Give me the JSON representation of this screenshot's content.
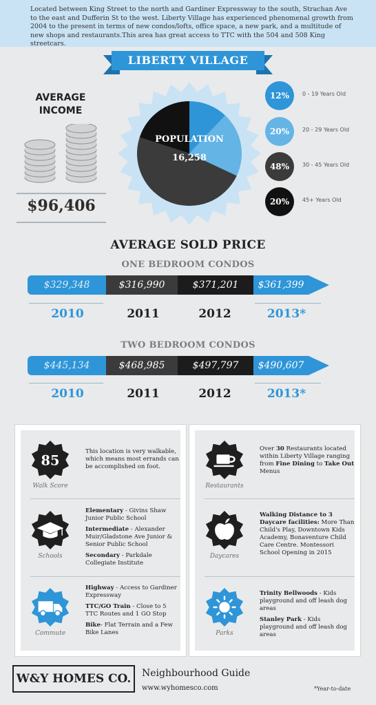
{
  "intro": "Located between King Street to the north and Gardiner Expressway to the south, Strachan Ave to the east and Dufferin St to the west. Liberty Village has experienced phenomenal growth from 2004 to the present in terms of new condos/lofts, office space, a new park, and a multitude of new shops and restaurants.This area has great access to TTC with the 504 and 508 King streetcars.",
  "title": "LIBERTY VILLAGE",
  "income": {
    "title_line1": "AVERAGE",
    "title_line2": "INCOME",
    "value": "$96,406"
  },
  "population": {
    "label": "POPULATION",
    "value": "16,258"
  },
  "age_groups": [
    {
      "percent": "12%",
      "label": "0 - 19 Years Old",
      "fraction": 0.12,
      "color": "#2e95d8"
    },
    {
      "percent": "20%",
      "label": "20 - 29 Years Old",
      "fraction": 0.2,
      "color": "#64b4e6"
    },
    {
      "percent": "48%",
      "label": "30 - 45 Years Old",
      "fraction": 0.48,
      "color": "#3b3b3b"
    },
    {
      "percent": "20%",
      "label": "45+ Years Old",
      "fraction": 0.2,
      "color": "#111111"
    }
  ],
  "sold_price_title": "AVERAGE SOLD PRICE",
  "one_bedroom": {
    "title": "ONE BEDROOM CONDOS",
    "prices": [
      "$329,348",
      "$316,990",
      "$371,201",
      "$361,399"
    ],
    "years": [
      "2010",
      "2011",
      "2012",
      "2013*"
    ]
  },
  "two_bedroom": {
    "title": "TWO BEDROOM CONDOS",
    "prices": [
      "$445,134",
      "$468,985",
      "$497,797",
      "$490,607"
    ],
    "years": [
      "2010",
      "2011",
      "2012",
      "2013*"
    ]
  },
  "walk": {
    "score": "85",
    "caption": "Walk Score",
    "text": "This location is very walkable, which means most errands can be accomplished on foot."
  },
  "schools": {
    "caption": "Schools",
    "elementary_label": "Elementary",
    "elementary": " - Givins Shaw Junior Public School",
    "intermediate_label": "Intermediate",
    "intermediate": " - Alexander Muir/Gladstone Ave Junior & Senior Public School",
    "secondary_label": "Secondary",
    "secondary": " - Parkdale Collegiate Institute"
  },
  "commute": {
    "caption": "Commute",
    "highway_label": "Highway",
    "highway": " - Access to Gardiner Expressway",
    "ttc_label": "TTC/GO Train",
    "ttc": " - Close to 5 TTC Routes and 1 GO Stop",
    "bike_label": "Bike",
    "bike": "- Flat Terrain and a Few Bike Lanes"
  },
  "restaurants": {
    "caption": "Restaurants",
    "t1": "Over ",
    "count": "30",
    "t2": " Restaurants located within Liberty Village ranging from ",
    "fine": "Fine Dining",
    "t3": " to ",
    "takeout": "Take Out",
    "t4": " Menus"
  },
  "daycares": {
    "caption": "Daycares",
    "heading": "Walking Distance to 3 Daycare facilities:",
    "text": " More Than Child's Play, Downtown Kids Academy, Bonaventure Child Care Centre. Montessori School Opening in 2015"
  },
  "parks": {
    "caption": "Parks",
    "p1_label": "Trinity Bellwoods",
    "p1": " - Kids playground and off leash dog areas",
    "p2_label": "Stanley Park",
    "p2": " - Kids playground and off leash dog areas"
  },
  "footer": {
    "logo": "W&Y HOMES CO.",
    "guide": "Neighbourhood Guide",
    "url": "www.wyhomesco.com",
    "note": "*Year-to-date"
  },
  "colors": {
    "blue": "#2e95d8",
    "light_blue": "#c9e3f4",
    "dark": "#222222"
  }
}
